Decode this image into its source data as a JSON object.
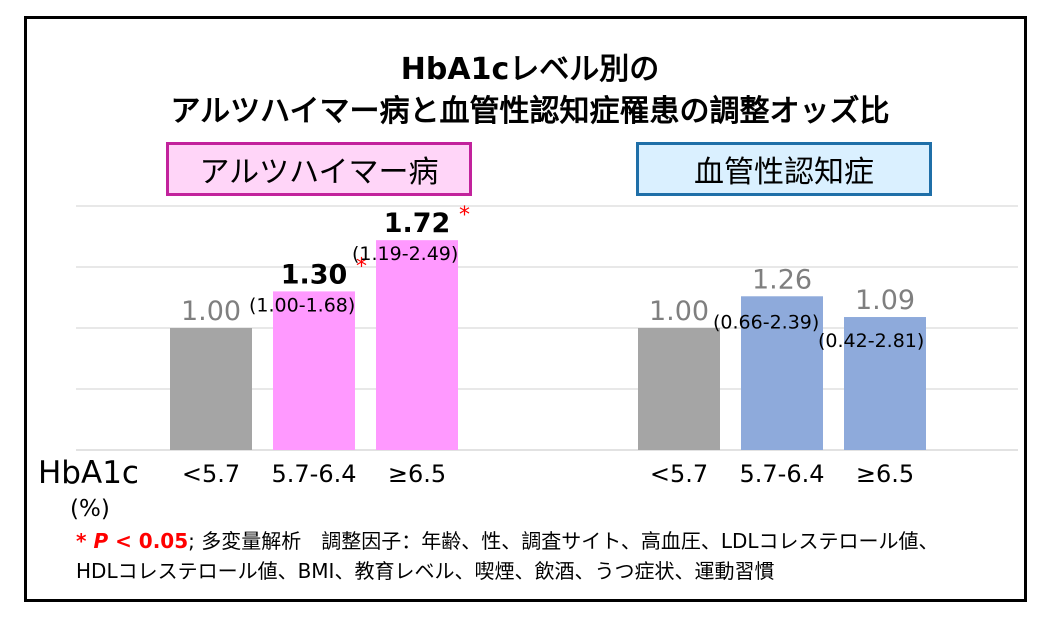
{
  "title_line1": "HbA1cレベル別の",
  "title_line2": "アルツハイマー病と血管性認知症罹患の調整オッズ比",
  "axis_name": "HbA1c",
  "axis_unit": "(%)",
  "footnote": {
    "sig_star": "*",
    "sig_p": "P",
    "sig_rest": " < 0.05",
    "line1_rest": "; 多変量解析　調整因子：年齢、性、調査サイト、高血圧、LDLコレステロール値、",
    "line2": "HDLコレステロール値、BMI、教育レベル、喫煙、飲酒、うつ症状、運動習慣"
  },
  "colors": {
    "reference": "#a5a5a5",
    "alzheimer": "#ff99ff",
    "vascular": "#8eaadb",
    "significance": "#ff0000"
  },
  "chart_data": [
    {
      "type": "bar",
      "title": "アルツハイマー病",
      "categories": [
        "<5.7",
        "5.7-6.4",
        "≥6.5"
      ],
      "values": [
        1.0,
        1.3,
        1.72
      ],
      "value_labels": [
        "1.00",
        "1.30",
        "1.72"
      ],
      "ci_labels": [
        "",
        "(1.00-1.68)",
        "(1.19-2.49)"
      ],
      "significant": [
        false,
        true,
        true
      ],
      "ylim": [
        0,
        2.0
      ],
      "grid": true
    },
    {
      "type": "bar",
      "title": "血管性認知症",
      "categories": [
        "<5.7",
        "5.7-6.4",
        "≥6.5"
      ],
      "values": [
        1.0,
        1.26,
        1.09
      ],
      "value_labels": [
        "1.00",
        "1.26",
        "1.09"
      ],
      "ci_labels": [
        "",
        "(0.66-2.39)",
        "(0.42-2.81)"
      ],
      "significant": [
        false,
        false,
        false
      ],
      "ylim": [
        0,
        2.0
      ],
      "grid": true
    }
  ]
}
